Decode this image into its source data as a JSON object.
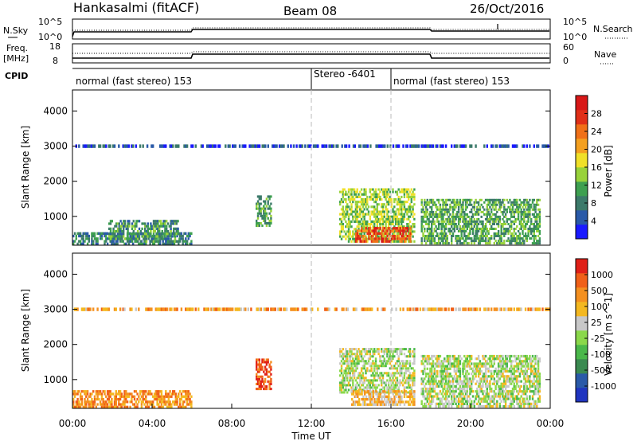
{
  "header": {
    "station": "Hankasalmi (fitACF)",
    "beam": "Beam 08",
    "date": "26/Oct/2016"
  },
  "strip_panels": {
    "nsky_label": "N.Sky",
    "nsearch_label": "N.Search",
    "freq_label_1": "Freq.",
    "freq_label_2": "[MHz]",
    "nave_label": "Nave",
    "cpid_label": "CPID",
    "left_ticks_top": [
      "10^5",
      "10^0"
    ],
    "right_ticks_top": [
      "10^5",
      "10^0"
    ],
    "left_ticks_freq": [
      "18",
      "8"
    ],
    "right_ticks_nave": [
      "60",
      "0"
    ],
    "cpid_segments": [
      {
        "label": "normal (fast stereo) 153",
        "start_hour": 0
      },
      {
        "label": "Stereo -6401",
        "start_hour": 12
      },
      {
        "label": "normal (fast stereo) 153",
        "start_hour": 16
      }
    ]
  },
  "colors": {
    "power_scale": [
      "#1a1aff",
      "#2a5aa8",
      "#3c7a6a",
      "#3ea050",
      "#98d23a",
      "#f0e028",
      "#f4a020",
      "#f07018",
      "#e03018",
      "#d81818"
    ],
    "velocity_scale": [
      "#2035c0",
      "#2a5aa8",
      "#3a8a50",
      "#4ab84a",
      "#8ad84a",
      "#c8c8c8",
      "#f4b820",
      "#f49020",
      "#f06018",
      "#e02018"
    ]
  },
  "chart_data": [
    {
      "type": "heatmap",
      "title": "",
      "ylabel": "Slant Range [km]",
      "xlabel": "",
      "xlim": [
        0,
        24
      ],
      "ylim": [
        180,
        4600
      ],
      "yticks": [
        "1000",
        "2000",
        "3000",
        "4000"
      ],
      "colorbar": {
        "label": "Power [dB]",
        "range": [
          0,
          32
        ],
        "ticks": [
          "4",
          "8",
          "12",
          "16",
          "20",
          "24",
          "28"
        ]
      },
      "regions": [
        {
          "x0": 0,
          "x1": 6,
          "y0": 180,
          "y1": 550,
          "level": 0.25
        },
        {
          "x0": 1.8,
          "x1": 5.4,
          "y0": 250,
          "y1": 900,
          "level": 0.3
        },
        {
          "x0": 9.2,
          "x1": 10.0,
          "y0": 700,
          "y1": 1600,
          "level": 0.35
        },
        {
          "x0": 13.4,
          "x1": 17.2,
          "y0": 250,
          "y1": 1800,
          "level": 0.45
        },
        {
          "x0": 14.2,
          "x1": 17.0,
          "y0": 250,
          "y1": 700,
          "level": 0.8
        },
        {
          "x0": 17.5,
          "x1": 23.5,
          "y0": 200,
          "y1": 1500,
          "level": 0.35
        },
        {
          "x0": 0,
          "x1": 24,
          "y0": 2950,
          "y1": 3050,
          "level": 0.15
        }
      ]
    },
    {
      "type": "heatmap",
      "title": "",
      "ylabel": "Slant Range [km]",
      "xlabel": "Time UT",
      "xlim": [
        0,
        24
      ],
      "ylim": [
        180,
        4600
      ],
      "xticks": [
        "00:00",
        "04:00",
        "08:00",
        "12:00",
        "16:00",
        "20:00",
        "00:00"
      ],
      "yticks": [
        "1000",
        "2000",
        "3000",
        "4000"
      ],
      "colorbar": {
        "label": "Velocity [m s^-1]",
        "ticks": [
          "1000",
          "500",
          "100",
          "25",
          "-25",
          "-100",
          "-500",
          "-1000"
        ]
      },
      "regions": [
        {
          "x0": 0,
          "x1": 6,
          "y0": 180,
          "y1": 700,
          "level": 0.75
        },
        {
          "x0": 9.2,
          "x1": 10.0,
          "y0": 700,
          "y1": 1600,
          "level": 0.9
        },
        {
          "x0": 13.4,
          "x1": 17.2,
          "y0": 600,
          "y1": 1900,
          "level": 0.5
        },
        {
          "x0": 14.0,
          "x1": 17.2,
          "y0": 250,
          "y1": 700,
          "level": 0.65
        },
        {
          "x0": 17.5,
          "x1": 23.5,
          "y0": 200,
          "y1": 1700,
          "level": 0.5
        },
        {
          "x0": 0,
          "x1": 24,
          "y0": 2950,
          "y1": 3050,
          "level": 0.7
        }
      ]
    }
  ]
}
